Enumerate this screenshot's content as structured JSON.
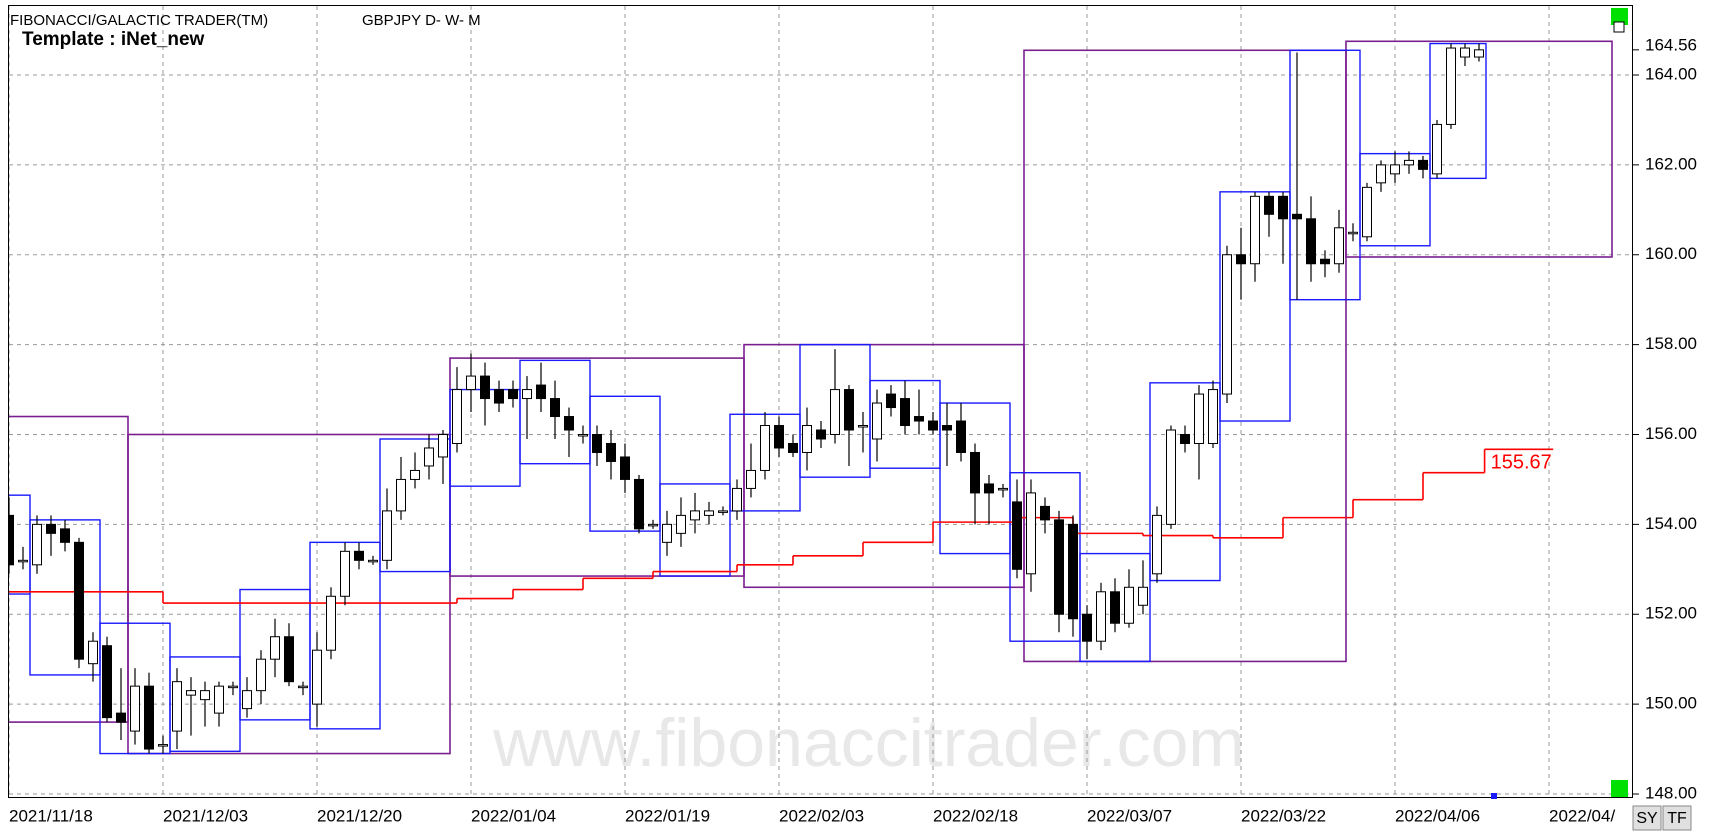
{
  "header": {
    "title": "FIBONACCI/GALACTIC TRADER(TM)",
    "symbol": "GBPJPY D- W- M",
    "template": "Template : iNet_new"
  },
  "watermark": "www.fibonaccitrader.com",
  "buttons": [
    "SY",
    "TF"
  ],
  "chart_data": {
    "type": "candlestick",
    "up_color": "#ffffff",
    "down_color": "#000000",
    "xlim": [
      0,
      116
    ],
    "ylim": [
      148,
      164.8
    ],
    "xticks": [
      {
        "value": 0,
        "label": "2021/11/18"
      },
      {
        "value": 11,
        "label": "2021/12/03"
      },
      {
        "value": 22,
        "label": "2021/12/20"
      },
      {
        "value": 33,
        "label": "2022/01/04"
      },
      {
        "value": 44,
        "label": "2022/01/19"
      },
      {
        "value": 55,
        "label": "2022/02/03"
      },
      {
        "value": 66,
        "label": "2022/02/18"
      },
      {
        "value": 77,
        "label": "2022/03/07"
      },
      {
        "value": 88,
        "label": "2022/03/22"
      },
      {
        "value": 99,
        "label": "2022/04/06"
      },
      {
        "value": 110,
        "label": "2022/04/"
      }
    ],
    "yticks": [
      {
        "value": 148,
        "label": "148.00"
      },
      {
        "value": 150,
        "label": "150.00"
      },
      {
        "value": 152,
        "label": "152.00"
      },
      {
        "value": 154,
        "label": "154.00"
      },
      {
        "value": 156,
        "label": "156.00"
      },
      {
        "value": 158,
        "label": "158.00"
      },
      {
        "value": 160,
        "label": "160.00"
      },
      {
        "value": 162,
        "label": "162.00"
      },
      {
        "value": 164,
        "label": "164.00"
      }
    ],
    "grid": true,
    "last_price": 164.56,
    "ohlc": [
      [
        154.2,
        154.6,
        152.9,
        153.1
      ],
      [
        153.2,
        153.5,
        153.0,
        153.2
      ],
      [
        153.1,
        154.2,
        152.9,
        154.0
      ],
      [
        154.0,
        154.2,
        153.3,
        153.8
      ],
      [
        153.9,
        154.1,
        153.4,
        153.6
      ],
      [
        153.6,
        153.7,
        150.8,
        151.0
      ],
      [
        150.9,
        151.6,
        150.5,
        151.4
      ],
      [
        151.3,
        151.5,
        149.6,
        149.7
      ],
      [
        149.8,
        150.8,
        149.2,
        149.6
      ],
      [
        149.4,
        150.8,
        149.1,
        150.4
      ],
      [
        150.4,
        150.7,
        148.9,
        149.0
      ],
      [
        149.1,
        149.3,
        148.9,
        149.1
      ],
      [
        149.4,
        150.8,
        149.0,
        150.5
      ],
      [
        150.2,
        150.6,
        149.3,
        150.3
      ],
      [
        150.1,
        150.5,
        149.5,
        150.3
      ],
      [
        149.8,
        150.5,
        149.5,
        150.4
      ],
      [
        150.4,
        150.5,
        150.2,
        150.4
      ],
      [
        149.9,
        150.6,
        149.7,
        150.3
      ],
      [
        150.3,
        151.2,
        150.0,
        151.0
      ],
      [
        151.0,
        151.9,
        150.6,
        151.5
      ],
      [
        151.5,
        151.8,
        150.4,
        150.5
      ],
      [
        150.4,
        150.5,
        150.2,
        150.4
      ],
      [
        150.0,
        151.6,
        149.5,
        151.2
      ],
      [
        151.2,
        152.6,
        151.0,
        152.4
      ],
      [
        152.4,
        153.6,
        152.2,
        153.4
      ],
      [
        153.4,
        153.6,
        153.0,
        153.2
      ],
      [
        153.2,
        153.3,
        153.1,
        153.2
      ],
      [
        153.2,
        154.8,
        153.0,
        154.3
      ],
      [
        154.3,
        155.5,
        154.1,
        155.0
      ],
      [
        155.0,
        155.6,
        154.8,
        155.2
      ],
      [
        155.3,
        156.0,
        155.0,
        155.7
      ],
      [
        155.5,
        156.1,
        154.9,
        156.0
      ],
      [
        155.8,
        157.5,
        155.6,
        157.0
      ],
      [
        157.0,
        157.8,
        156.5,
        157.3
      ],
      [
        157.3,
        157.6,
        156.2,
        156.8
      ],
      [
        157.0,
        157.2,
        156.5,
        156.7
      ],
      [
        157.0,
        157.2,
        156.6,
        156.8
      ],
      [
        156.8,
        157.3,
        155.9,
        157.0
      ],
      [
        157.1,
        157.6,
        156.5,
        156.8
      ],
      [
        156.8,
        157.2,
        155.9,
        156.4
      ],
      [
        156.4,
        156.6,
        155.5,
        156.1
      ],
      [
        156.0,
        156.2,
        155.8,
        156.0
      ],
      [
        156.0,
        156.2,
        155.3,
        155.6
      ],
      [
        155.8,
        156.1,
        155.0,
        155.4
      ],
      [
        155.5,
        155.8,
        154.7,
        155.0
      ],
      [
        155.0,
        155.1,
        153.8,
        153.9
      ],
      [
        154.0,
        154.1,
        153.9,
        154.0
      ],
      [
        153.6,
        154.3,
        153.3,
        154.0
      ],
      [
        153.8,
        154.6,
        153.5,
        154.2
      ],
      [
        154.1,
        154.7,
        153.8,
        154.3
      ],
      [
        154.2,
        154.5,
        154.0,
        154.3
      ],
      [
        154.3,
        154.4,
        154.2,
        154.3
      ],
      [
        154.3,
        155.0,
        154.1,
        154.8
      ],
      [
        154.8,
        155.8,
        154.6,
        155.2
      ],
      [
        155.2,
        156.5,
        155.0,
        156.2
      ],
      [
        156.2,
        156.4,
        155.5,
        155.7
      ],
      [
        155.8,
        156.0,
        155.5,
        155.6
      ],
      [
        155.6,
        156.6,
        155.2,
        156.2
      ],
      [
        156.1,
        156.3,
        155.7,
        155.9
      ],
      [
        156.0,
        157.9,
        155.8,
        157.0
      ],
      [
        157.0,
        157.1,
        155.3,
        156.1
      ],
      [
        156.2,
        156.5,
        155.6,
        156.2
      ],
      [
        155.9,
        157.0,
        155.4,
        156.7
      ],
      [
        156.9,
        157.1,
        156.4,
        156.6
      ],
      [
        156.8,
        157.2,
        156.0,
        156.2
      ],
      [
        156.4,
        157.0,
        156.0,
        156.3
      ],
      [
        156.3,
        156.5,
        156.0,
        156.1
      ],
      [
        156.2,
        156.7,
        155.3,
        156.1
      ],
      [
        156.3,
        156.7,
        155.4,
        155.6
      ],
      [
        155.6,
        155.8,
        154.0,
        154.7
      ],
      [
        154.9,
        155.1,
        154.0,
        154.7
      ],
      [
        154.8,
        154.9,
        154.6,
        154.8
      ],
      [
        154.5,
        155.0,
        152.8,
        153.0
      ],
      [
        152.9,
        155.0,
        152.5,
        154.7
      ],
      [
        154.4,
        154.6,
        153.8,
        154.1
      ],
      [
        154.1,
        154.3,
        151.6,
        152.0
      ],
      [
        154.0,
        154.2,
        151.5,
        151.9
      ],
      [
        152.0,
        152.2,
        151.0,
        151.4
      ],
      [
        151.4,
        152.7,
        151.2,
        152.5
      ],
      [
        152.5,
        152.8,
        151.6,
        151.8
      ],
      [
        151.8,
        153.0,
        151.7,
        152.6
      ],
      [
        152.2,
        153.2,
        152.0,
        152.6
      ],
      [
        152.9,
        154.4,
        152.7,
        154.2
      ],
      [
        154.0,
        156.2,
        153.9,
        156.1
      ],
      [
        156.0,
        156.2,
        155.6,
        155.8
      ],
      [
        155.8,
        157.1,
        155.0,
        156.9
      ],
      [
        155.8,
        157.2,
        155.7,
        157.0
      ],
      [
        156.9,
        160.2,
        156.7,
        160.0
      ],
      [
        160.0,
        160.6,
        159.0,
        159.8
      ],
      [
        159.8,
        161.4,
        159.4,
        161.3
      ],
      [
        161.3,
        161.4,
        160.4,
        160.9
      ],
      [
        161.3,
        161.4,
        159.8,
        160.8
      ],
      [
        160.9,
        164.5,
        159.0,
        160.8
      ],
      [
        160.8,
        161.3,
        159.4,
        159.8
      ],
      [
        159.9,
        160.1,
        159.5,
        159.8
      ],
      [
        159.8,
        161.0,
        159.6,
        160.6
      ],
      [
        160.5,
        160.7,
        160.3,
        160.5
      ],
      [
        160.4,
        161.6,
        160.3,
        161.5
      ],
      [
        161.6,
        162.1,
        161.4,
        162.0
      ],
      [
        161.8,
        162.3,
        161.6,
        162.0
      ],
      [
        162.0,
        162.3,
        161.8,
        162.1
      ],
      [
        162.1,
        162.2,
        161.7,
        161.9
      ],
      [
        161.8,
        163.0,
        161.7,
        162.9
      ],
      [
        162.9,
        164.7,
        162.8,
        164.6
      ],
      [
        164.4,
        164.7,
        164.2,
        164.6
      ],
      [
        164.4,
        164.7,
        164.3,
        164.56
      ]
    ],
    "monthly_boxes": {
      "color": "#7a1f8f",
      "items": [
        {
          "start": 0,
          "end": 8,
          "high": 156.4,
          "low": 149.6
        },
        {
          "start": 9,
          "end": 31,
          "high": 156.0,
          "low": 148.9
        },
        {
          "start": 32,
          "end": 52,
          "high": 157.7,
          "low": 152.85
        },
        {
          "start": 53,
          "end": 72,
          "high": 158.0,
          "low": 152.6
        },
        {
          "start": 73,
          "end": 95,
          "high": 164.55,
          "low": 150.95
        },
        {
          "start": 96,
          "end": 114,
          "high": 164.75,
          "low": 159.95
        }
      ]
    },
    "weekly_boxes": {
      "color": "#1a1aff",
      "items": [
        {
          "start": 0,
          "end": 1,
          "high": 154.65,
          "low": 152.45
        },
        {
          "start": 2,
          "end": 6,
          "high": 154.1,
          "low": 150.65
        },
        {
          "start": 7,
          "end": 11,
          "high": 151.8,
          "low": 148.9
        },
        {
          "start": 12,
          "end": 16,
          "high": 151.05,
          "low": 148.95
        },
        {
          "start": 17,
          "end": 21,
          "high": 152.55,
          "low": 149.65
        },
        {
          "start": 22,
          "end": 26,
          "high": 153.6,
          "low": 149.45
        },
        {
          "start": 27,
          "end": 31,
          "high": 155.9,
          "low": 152.95
        },
        {
          "start": 32,
          "end": 36,
          "high": 157.0,
          "low": 154.85
        },
        {
          "start": 37,
          "end": 41,
          "high": 157.65,
          "low": 155.35
        },
        {
          "start": 42,
          "end": 46,
          "high": 156.85,
          "low": 153.85
        },
        {
          "start": 47,
          "end": 51,
          "high": 154.9,
          "low": 152.85
        },
        {
          "start": 52,
          "end": 56,
          "high": 156.45,
          "low": 154.3
        },
        {
          "start": 57,
          "end": 61,
          "high": 158.0,
          "low": 155.05
        },
        {
          "start": 62,
          "end": 66,
          "high": 157.2,
          "low": 155.25
        },
        {
          "start": 67,
          "end": 71,
          "high": 156.7,
          "low": 153.35
        },
        {
          "start": 72,
          "end": 76,
          "high": 155.15,
          "low": 151.4
        },
        {
          "start": 77,
          "end": 81,
          "high": 153.35,
          "low": 150.95
        },
        {
          "start": 82,
          "end": 86,
          "high": 157.15,
          "low": 152.75
        },
        {
          "start": 87,
          "end": 91,
          "high": 161.4,
          "low": 156.3
        },
        {
          "start": 92,
          "end": 96,
          "high": 164.55,
          "low": 159.0
        },
        {
          "start": 97,
          "end": 101,
          "high": 162.25,
          "low": 160.2
        },
        {
          "start": 102,
          "end": 105,
          "high": 164.7,
          "low": 161.7
        }
      ]
    },
    "step_line": {
      "color": "#ff0000",
      "x": [
        0,
        11,
        32,
        36,
        41,
        46,
        52,
        56,
        61,
        66,
        72,
        76,
        81,
        86,
        91,
        96,
        101,
        105.4,
        110.3
      ],
      "values": [
        152.5,
        152.25,
        152.35,
        152.55,
        152.8,
        152.95,
        153.1,
        153.3,
        153.6,
        154.05,
        154.15,
        153.8,
        153.75,
        153.7,
        154.15,
        154.55,
        155.15,
        155.67,
        155.67
      ]
    }
  }
}
